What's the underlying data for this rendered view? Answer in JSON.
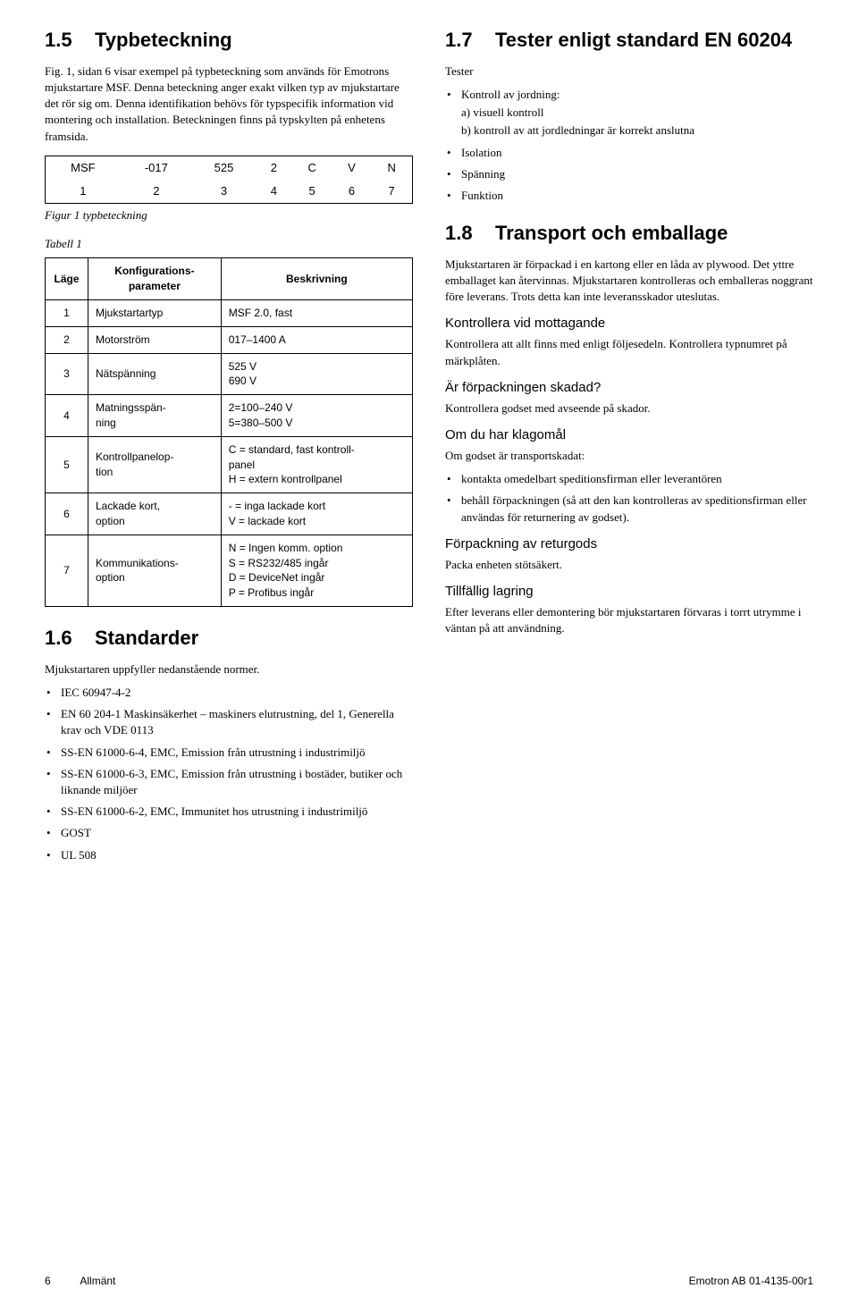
{
  "left": {
    "s15": {
      "num": "1.5",
      "title": "Typbeteckning",
      "p1": "Fig. 1, sidan 6 visar exempel på typbeteckning som används för Emotrons mjukstartare MSF. Denna beteckning anger exakt vilken typ av mjukstartare det rör sig om. Denna identifikation behövs för typspecifik information vid montering och installation. Beteckningen finns på typskylten på enhetens framsida.",
      "fig_row1": [
        "MSF",
        "-017",
        "525",
        "2",
        "C",
        "V",
        "N"
      ],
      "fig_row2": [
        "1",
        "2",
        "3",
        "4",
        "5",
        "6",
        "7"
      ],
      "fig_caption": "Figur 1   typbeteckning",
      "tabell_label": "Tabell 1",
      "th": {
        "c1": "Läge",
        "c2": "Konfigurations-\nparameter",
        "c3": "Beskrivning"
      },
      "rows": [
        {
          "lage": "1",
          "param": "Mjukstartartyp",
          "desc": "MSF 2.0, fast"
        },
        {
          "lage": "2",
          "param": "Motorström",
          "desc": "017–1400 A"
        },
        {
          "lage": "3",
          "param": "Nätspänning",
          "desc": "525 V\n690 V"
        },
        {
          "lage": "4",
          "param": "Matningsspän-\nning",
          "desc": "2=100–240 V\n5=380–500 V"
        },
        {
          "lage": "5",
          "param": "Kontrollpanelop-\ntion",
          "desc": "C = standard, fast kontroll-\npanel\nH = extern kontrollpanel"
        },
        {
          "lage": "6",
          "param": "Lackade kort,\noption",
          "desc": "- = inga lackade kort\nV = lackade kort"
        },
        {
          "lage": "7",
          "param": "Kommunikations-\noption",
          "desc": "N = Ingen komm. option\nS = RS232/485 ingår\nD = DeviceNet ingår\nP = Profibus ingår"
        }
      ]
    },
    "s16": {
      "num": "1.6",
      "title": "Standarder",
      "p1": "Mjukstartaren uppfyller nedanstående normer.",
      "items": [
        "IEC 60947-4-2",
        "EN 60 204-1 Maskinsäkerhet – maskiners elutrustning, del 1, Generella krav och VDE 0113",
        "SS-EN 61000-6-4, EMC, Emission från utrustning i industrimiljö",
        "SS-EN 61000-6-3, EMC, Emission från utrustning i bostäder, butiker och liknande miljöer",
        "SS-EN 61000-6-2, EMC, Immunitet hos utrustning i industrimiljö",
        "GOST",
        "UL 508"
      ]
    }
  },
  "right": {
    "s17": {
      "num": "1.7",
      "title": "Tester enligt standard EN 60204",
      "lead": "Tester",
      "items": [
        {
          "text": "Kontroll av jordning:",
          "sub": [
            "a) visuell kontroll",
            "b) kontroll av att jordledningar är korrekt anslutna"
          ]
        },
        {
          "text": "Isolation"
        },
        {
          "text": "Spänning"
        },
        {
          "text": "Funktion"
        }
      ]
    },
    "s18": {
      "num": "1.8",
      "title": "Transport och emballage",
      "p1": "Mjukstartaren är förpackad i en kartong eller en låda av plywood. Det yttre emballaget kan återvinnas. Mjukstartaren kontrolleras och emballeras noggrant före leverans. Trots detta kan inte leveransskador uteslutas.",
      "h_kontrollera": "Kontrollera vid mottagande",
      "p_kontrollera": "Kontrollera att allt finns med enligt följesedeln. Kontrollera typnumret på märkplåten.",
      "h_forpack": "Är förpackningen skadad?",
      "p_forpack": "Kontrollera godset med avseende på skador.",
      "h_klagomal": "Om du har klagomål",
      "p_klagomal": "Om godset är transportskadat:",
      "klagomal_items": [
        "kontakta omedelbart speditionsfirman eller leverantören",
        "behåll förpackningen (så att den kan kontrolleras av speditionsfirman eller användas för returnering av godset)."
      ],
      "h_retur": "Förpackning av returgods",
      "p_retur": "Packa enheten stötsäkert.",
      "h_lagring": "Tillfällig lagring",
      "p_lagring": "Efter leverans eller demontering bör mjukstartaren förvaras i torrt utrymme i väntan på att användning."
    }
  },
  "footer": {
    "left_num": "6",
    "left_text": "Allmänt",
    "right": "Emotron AB 01-4135-00r1"
  }
}
